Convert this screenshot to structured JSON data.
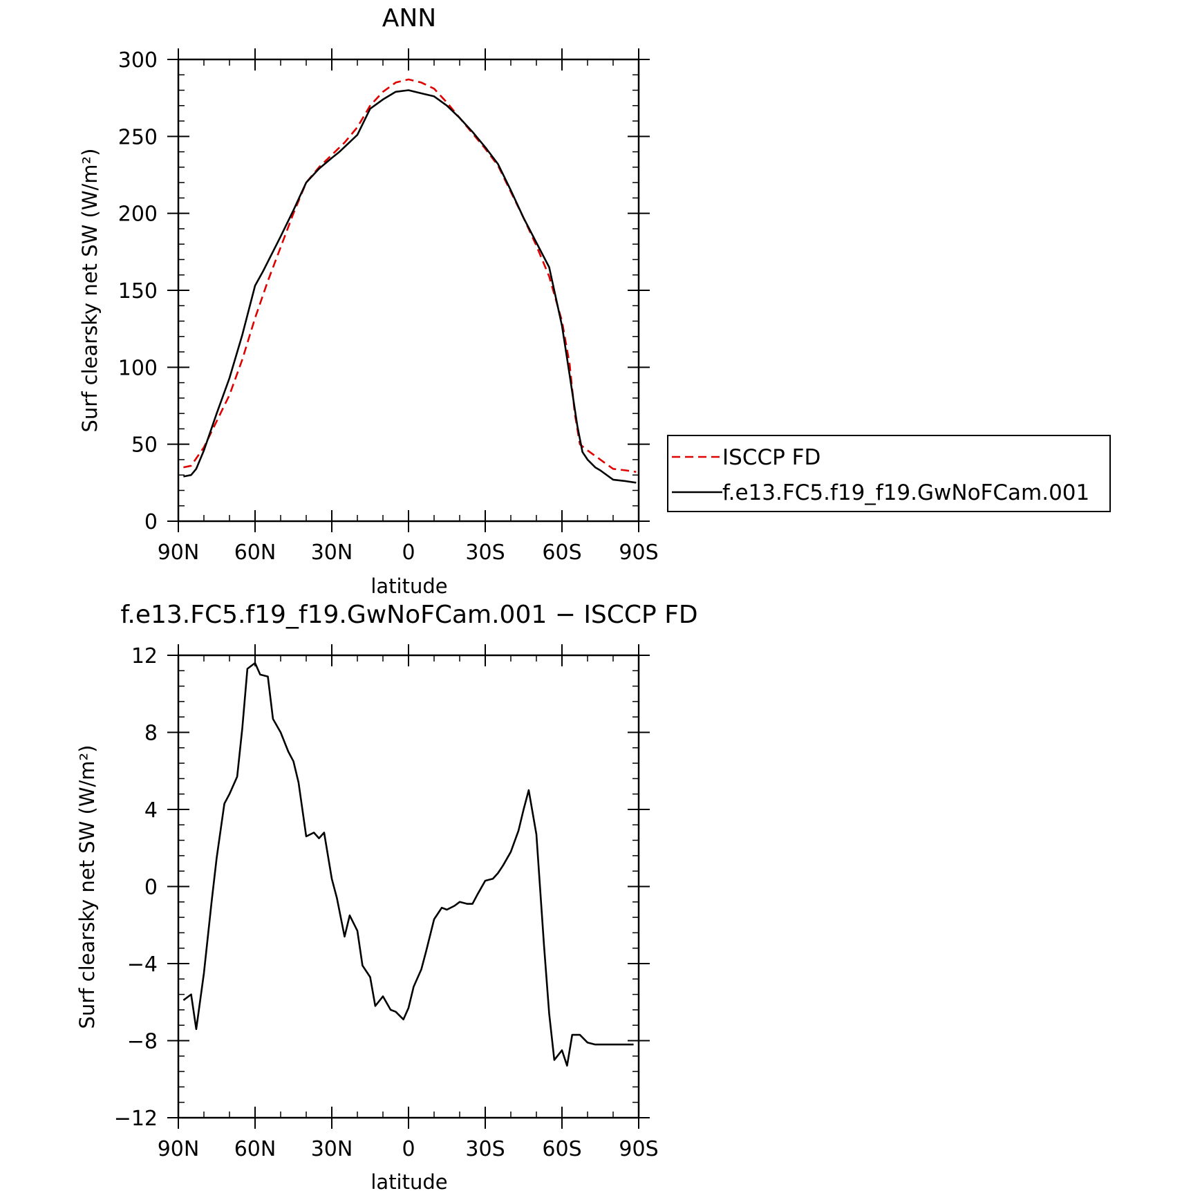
{
  "chart_data": [
    {
      "type": "line",
      "title": "ANN",
      "xlabel": "latitude",
      "ylabel": "Surf clearsky net SW (W/m²)",
      "xlim": [
        90,
        -90
      ],
      "ylim": [
        0,
        300
      ],
      "xticks": [
        90,
        60,
        30,
        0,
        -30,
        -60,
        -90
      ],
      "xtick_labels": [
        "90N",
        "60N",
        "30N",
        "0",
        "30S",
        "60S",
        "90S"
      ],
      "yticks": [
        0,
        50,
        100,
        150,
        200,
        250,
        300
      ],
      "ytick_labels": [
        "0",
        "50",
        "100",
        "150",
        "200",
        "250",
        "300"
      ],
      "legend": {
        "placement": "right",
        "entries": [
          "ISCCP FD",
          "f.e13.FC5.f19_f19.GwNoFCam.001"
        ]
      },
      "series": [
        {
          "name": "ISCCP FD",
          "color": "#e00000",
          "dash": true,
          "x": [
            88,
            85,
            80,
            75,
            70,
            65,
            60,
            55,
            50,
            45,
            40,
            35,
            30,
            25,
            20,
            15,
            10,
            5,
            0,
            -5,
            -10,
            -15,
            -20,
            -25,
            -30,
            -35,
            -40,
            -45,
            -50,
            -55,
            -60,
            -63,
            -65,
            -67,
            -70,
            -75,
            -80,
            -85,
            -89
          ],
          "y": [
            35,
            36,
            48,
            65,
            82,
            105,
            132,
            156,
            178,
            200,
            220,
            230,
            238,
            246,
            256,
            270,
            279,
            285,
            287,
            285,
            281,
            272,
            262,
            252,
            242,
            231,
            214,
            197,
            179,
            159,
            130,
            102,
            70,
            50,
            46,
            40,
            34,
            33,
            32
          ]
        },
        {
          "name": "f.e13.FC5.f19_f19.GwNoFCam.001",
          "color": "#000000",
          "dash": false,
          "x": [
            88,
            85,
            83,
            80,
            75,
            70,
            65,
            60,
            57,
            50,
            45,
            40,
            35,
            30,
            27,
            20,
            15,
            10,
            5,
            0,
            -5,
            -10,
            -15,
            -20,
            -25,
            -30,
            -35,
            -40,
            -45,
            -50,
            -55,
            -60,
            -63,
            -66,
            -68,
            -70,
            -73,
            -75,
            -80,
            -85,
            -89
          ],
          "y": [
            29,
            30,
            34,
            46,
            70,
            93,
            121,
            153,
            162,
            185,
            202,
            220,
            229,
            236,
            240,
            251,
            268,
            274,
            279,
            280,
            278,
            276,
            270,
            262,
            253,
            243,
            232,
            215,
            197,
            181,
            165,
            127,
            95,
            62,
            45,
            40,
            35,
            33,
            27,
            26,
            25
          ]
        }
      ]
    },
    {
      "type": "line",
      "title": "f.e13.FC5.f19_f19.GwNoFCam.001 − ISCCP FD",
      "xlabel": "latitude",
      "ylabel": "Surf clearsky net SW (W/m²)",
      "xlim": [
        90,
        -90
      ],
      "ylim": [
        -12,
        12
      ],
      "xticks": [
        90,
        60,
        30,
        0,
        -30,
        -60,
        -90
      ],
      "xtick_labels": [
        "90N",
        "60N",
        "30N",
        "0",
        "30S",
        "60S",
        "90S"
      ],
      "yticks": [
        -12,
        -8,
        -4,
        0,
        4,
        8,
        12
      ],
      "ytick_labels": [
        "−12",
        "−8",
        "−4",
        "0",
        "4",
        "8",
        "12"
      ],
      "series": [
        {
          "color": "#000000",
          "dash": false,
          "x": [
            88,
            85,
            83,
            80,
            77,
            75,
            72,
            70,
            67,
            65,
            63,
            60,
            58,
            55,
            53,
            50,
            47,
            45,
            43,
            40,
            37,
            35,
            33,
            30,
            28,
            25,
            23,
            20,
            18,
            15,
            13,
            10,
            7,
            5,
            2,
            0,
            -2,
            -5,
            -7,
            -10,
            -13,
            -15,
            -18,
            -20,
            -23,
            -25,
            -27,
            -30,
            -33,
            -35,
            -37,
            -40,
            -43,
            -45,
            -47,
            -50,
            -53,
            -55,
            -57,
            -60,
            -62,
            -64,
            -67,
            -70,
            -73,
            -75,
            -77,
            -80,
            -82,
            -85,
            -88
          ],
          "y": [
            -5.9,
            -5.6,
            -7.4,
            -4.5,
            -0.8,
            1.5,
            4.3,
            4.8,
            5.7,
            8.2,
            11.3,
            11.6,
            11.0,
            10.9,
            8.7,
            8.0,
            7.0,
            6.5,
            5.4,
            2.6,
            2.8,
            2.5,
            2.8,
            0.4,
            -0.6,
            -2.6,
            -1.5,
            -2.3,
            -4.1,
            -4.7,
            -6.2,
            -5.7,
            -6.4,
            -6.5,
            -6.9,
            -6.3,
            -5.2,
            -4.3,
            -3.3,
            -1.7,
            -1.1,
            -1.2,
            -1.0,
            -0.8,
            -0.9,
            -0.9,
            -0.4,
            0.3,
            0.4,
            0.7,
            1.1,
            1.8,
            2.9,
            4.0,
            5.0,
            2.7,
            -3.1,
            -6.6,
            -9.0,
            -8.5,
            -9.3,
            -7.7,
            -7.7,
            -8.1,
            -8.2,
            -8.2,
            -8.2,
            -8.2,
            -8.2,
            -8.2,
            -8.2
          ]
        }
      ]
    }
  ]
}
